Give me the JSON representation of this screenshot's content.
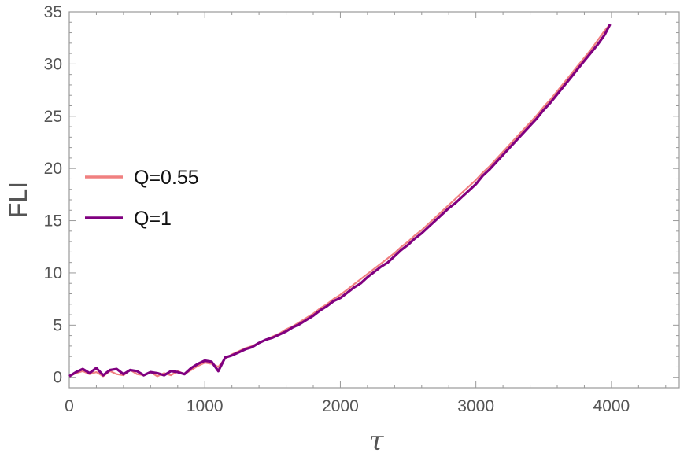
{
  "chart_data": {
    "type": "line",
    "xlabel": "τ",
    "ylabel": "FLI",
    "xlim": [
      0,
      4500
    ],
    "ylim": [
      -1,
      35
    ],
    "xticks": [
      0,
      1000,
      2000,
      3000,
      4000
    ],
    "yticks": [
      0,
      5,
      10,
      15,
      20,
      25,
      30,
      35
    ],
    "grid": false,
    "legend_position": "left-middle",
    "series": [
      {
        "name": "Q=0.55",
        "color": "#F08080",
        "x": [
          0,
          50,
          100,
          150,
          200,
          250,
          300,
          350,
          400,
          450,
          500,
          550,
          600,
          650,
          700,
          750,
          800,
          850,
          900,
          950,
          1000,
          1050,
          1100,
          1150,
          1200,
          1250,
          1300,
          1350,
          1400,
          1450,
          1500,
          1550,
          1600,
          1650,
          1700,
          1750,
          1800,
          1850,
          1900,
          1950,
          2000,
          2050,
          2100,
          2150,
          2200,
          2250,
          2300,
          2350,
          2400,
          2450,
          2500,
          2550,
          2600,
          2650,
          2700,
          2750,
          2800,
          2850,
          2900,
          2950,
          3000,
          3050,
          3100,
          3150,
          3200,
          3250,
          3300,
          3350,
          3400,
          3450,
          3500,
          3550,
          3600,
          3650,
          3700,
          3750,
          3800,
          3850,
          3900,
          3950,
          3990
        ],
        "y": [
          0.1,
          0.4,
          0.6,
          0.3,
          0.5,
          0.1,
          0.6,
          0.3,
          0.2,
          0.7,
          0.3,
          0.2,
          0.5,
          0.1,
          0.4,
          0.2,
          0.6,
          0.3,
          0.7,
          1.1,
          1.4,
          1.3,
          1.0,
          1.8,
          2.2,
          2.5,
          2.8,
          3.0,
          3.3,
          3.6,
          3.9,
          4.2,
          4.6,
          4.9,
          5.3,
          5.7,
          6.1,
          6.6,
          7.0,
          7.5,
          7.9,
          8.4,
          8.9,
          9.4,
          9.9,
          10.4,
          10.9,
          11.4,
          11.9,
          12.5,
          13.0,
          13.6,
          14.1,
          14.7,
          15.3,
          15.9,
          16.5,
          17.1,
          17.7,
          18.3,
          18.9,
          19.6,
          20.2,
          20.9,
          21.6,
          22.3,
          23.0,
          23.7,
          24.4,
          25.1,
          25.9,
          26.6,
          27.4,
          28.2,
          29.0,
          29.8,
          30.6,
          31.4,
          32.3,
          33.2,
          33.8
        ]
      },
      {
        "name": "Q=1",
        "color": "#800080",
        "x": [
          0,
          50,
          100,
          150,
          200,
          250,
          300,
          350,
          400,
          450,
          500,
          550,
          600,
          650,
          700,
          750,
          800,
          850,
          900,
          950,
          1000,
          1050,
          1100,
          1150,
          1200,
          1250,
          1300,
          1350,
          1400,
          1450,
          1500,
          1550,
          1600,
          1650,
          1700,
          1750,
          1800,
          1850,
          1900,
          1950,
          2000,
          2050,
          2100,
          2150,
          2200,
          2250,
          2300,
          2350,
          2400,
          2450,
          2500,
          2550,
          2600,
          2650,
          2700,
          2750,
          2800,
          2850,
          2900,
          2950,
          3000,
          3050,
          3100,
          3150,
          3200,
          3250,
          3300,
          3350,
          3400,
          3450,
          3500,
          3550,
          3600,
          3650,
          3700,
          3750,
          3800,
          3850,
          3900,
          3950,
          3990
        ],
        "y": [
          0.1,
          0.5,
          0.8,
          0.4,
          0.9,
          0.2,
          0.7,
          0.8,
          0.3,
          0.7,
          0.6,
          0.2,
          0.5,
          0.4,
          0.2,
          0.6,
          0.5,
          0.3,
          0.9,
          1.3,
          1.6,
          1.5,
          0.6,
          1.9,
          2.1,
          2.4,
          2.7,
          2.9,
          3.3,
          3.6,
          3.8,
          4.1,
          4.4,
          4.8,
          5.1,
          5.5,
          5.9,
          6.4,
          6.8,
          7.3,
          7.6,
          8.1,
          8.6,
          9.0,
          9.6,
          10.1,
          10.6,
          11.0,
          11.6,
          12.2,
          12.7,
          13.3,
          13.8,
          14.4,
          15.0,
          15.6,
          16.2,
          16.7,
          17.3,
          17.9,
          18.5,
          19.3,
          19.9,
          20.6,
          21.3,
          22.0,
          22.7,
          23.4,
          24.1,
          24.8,
          25.6,
          26.3,
          27.1,
          27.9,
          28.7,
          29.5,
          30.3,
          31.1,
          31.9,
          32.8,
          33.8
        ]
      }
    ]
  }
}
